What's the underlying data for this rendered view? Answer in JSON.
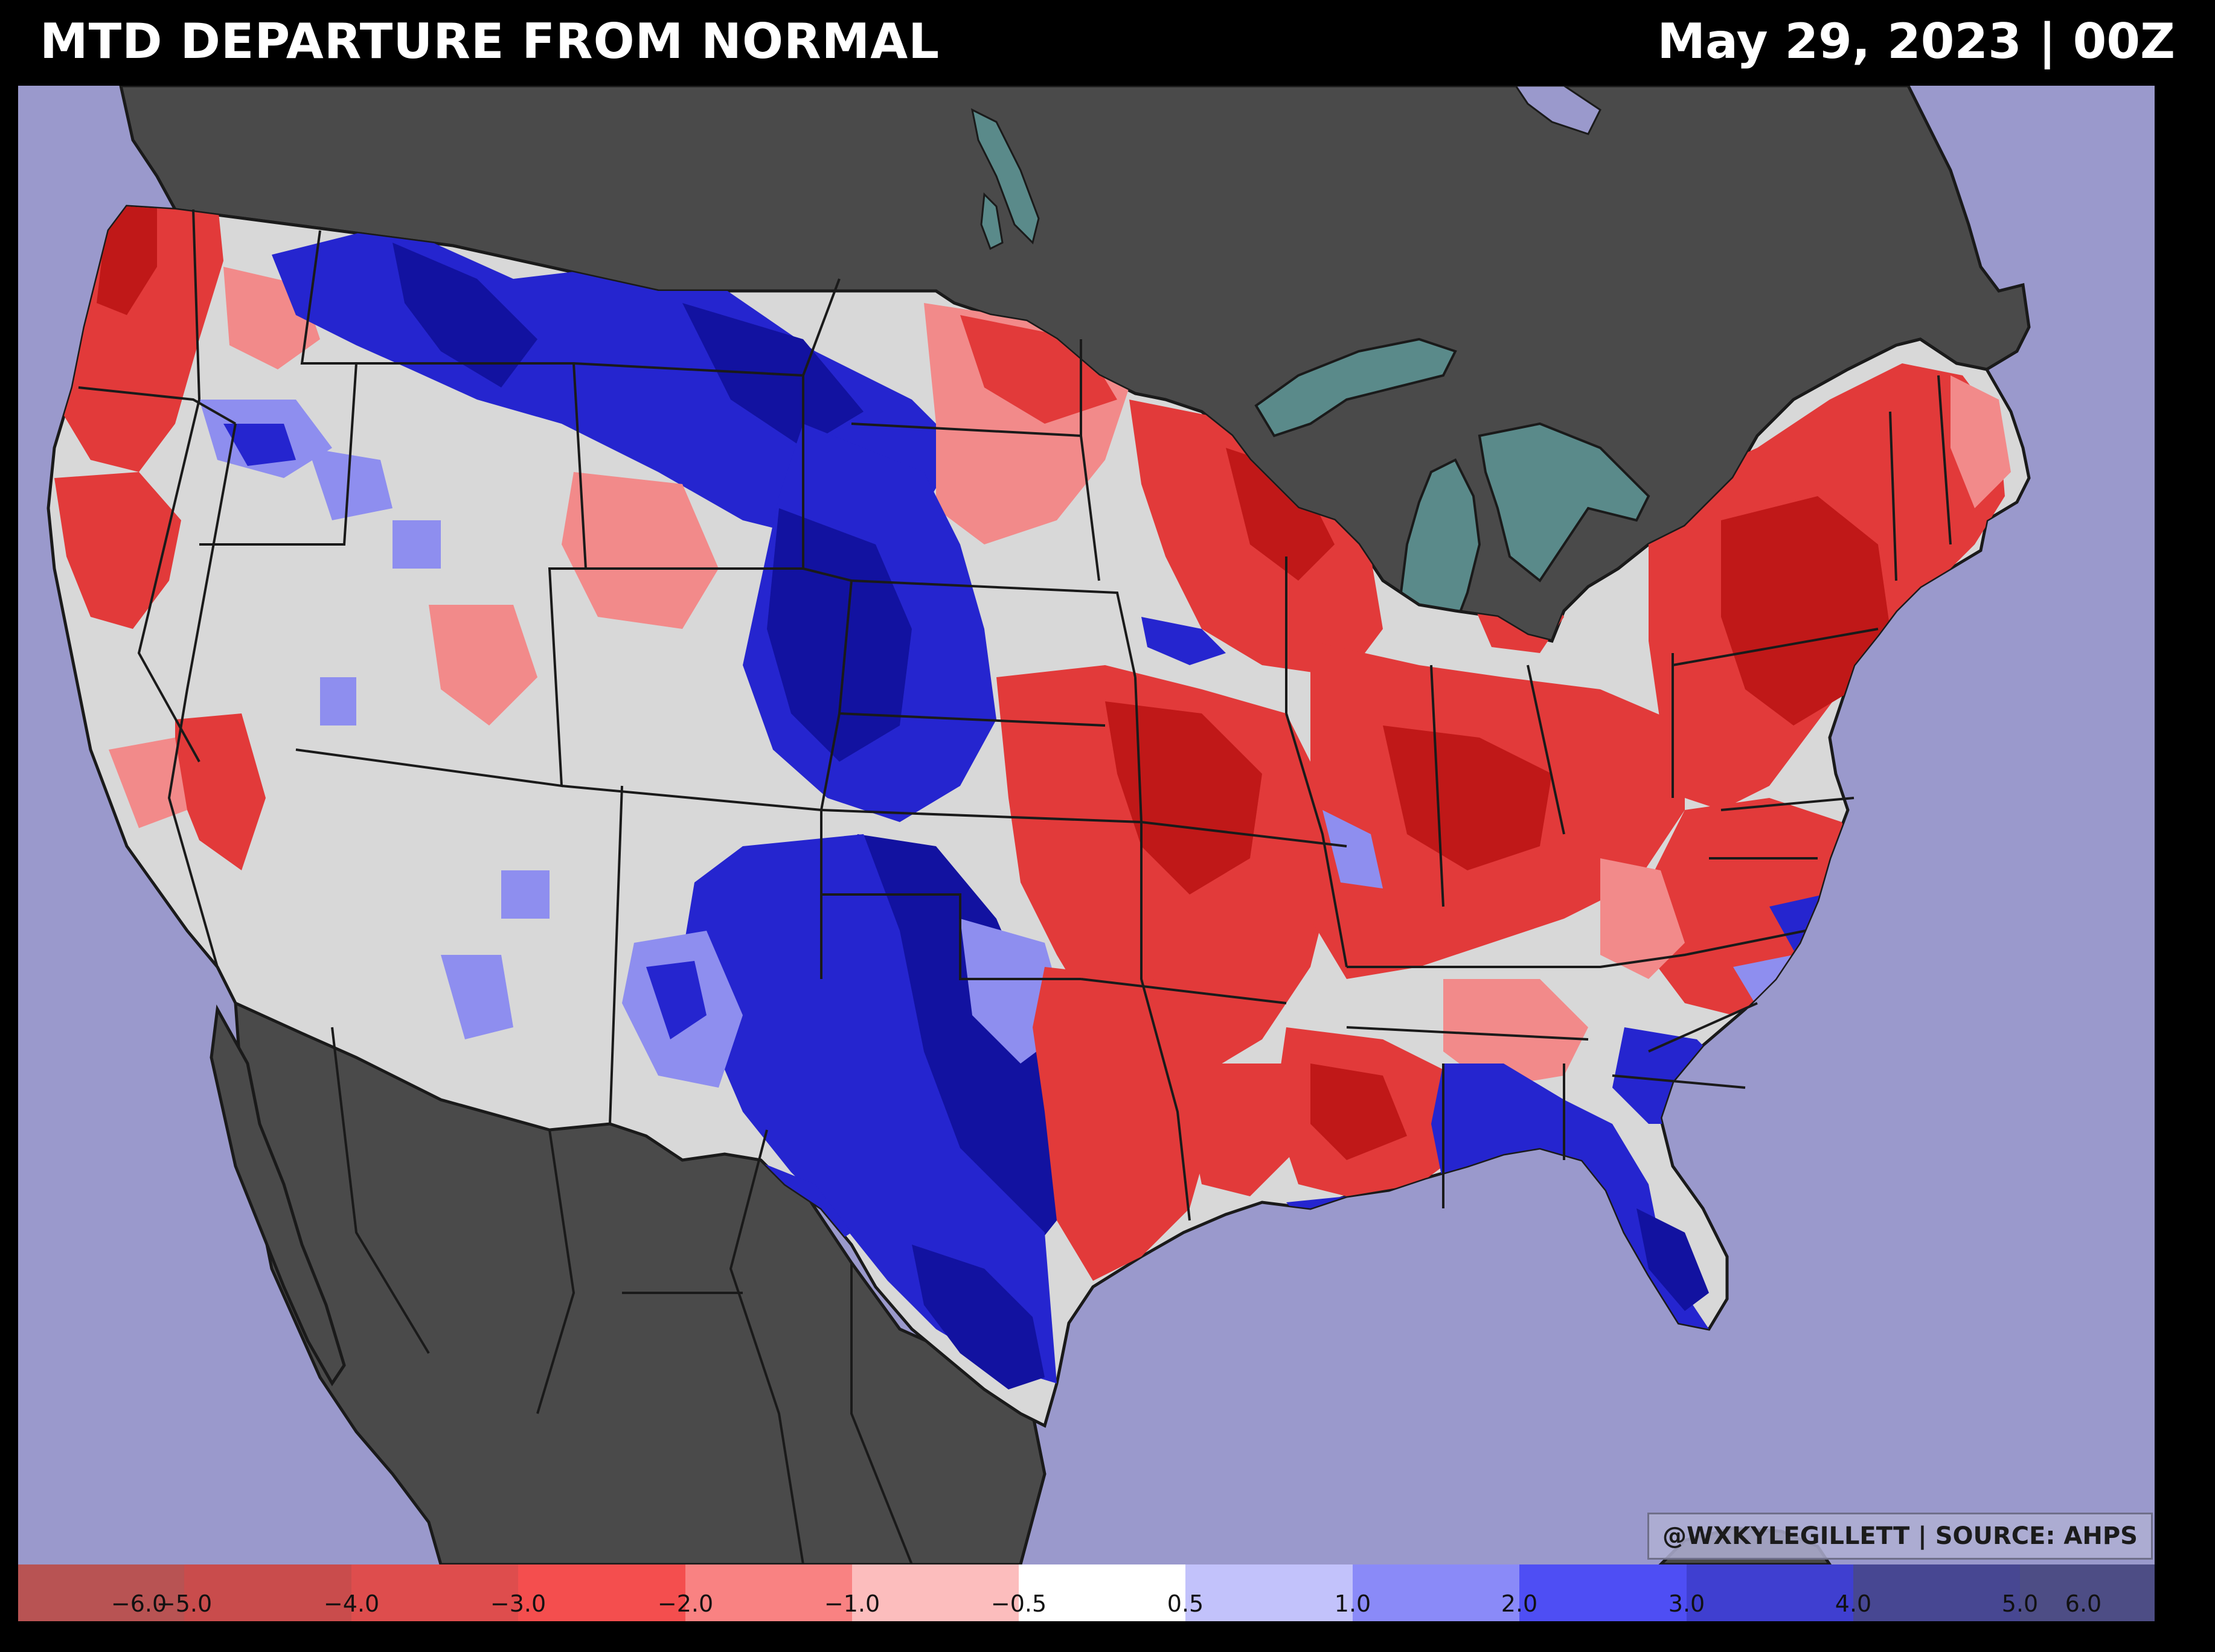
{
  "header": {
    "title": "MTD DEPARTURE FROM NORMAL",
    "valid_time": "May 29, 2023 | 00Z"
  },
  "credit": "@WXKYLEGILLETT | SOURCE: AHPS",
  "colors": {
    "ocean": "#9a99cc",
    "land_outside": "#4a4a4a",
    "lakes": "#5a8a8a",
    "neutral": "#d8d8d8",
    "dry_light": "#f28a8a",
    "dry": "#e23a3a",
    "dry_strong": "#c01818",
    "wet_light": "#8e8eef",
    "wet": "#2525cf",
    "wet_strong": "#1212a0",
    "borders": "#1a1a1a"
  },
  "colorbar": {
    "bins": [
      {
        "color": "#b85353"
      },
      {
        "color": "#c94c4c"
      },
      {
        "color": "#de4d4d"
      },
      {
        "color": "#f44e4e"
      },
      {
        "color": "#f98282"
      },
      {
        "color": "#fcbdbd"
      },
      {
        "color": "#ffffff"
      },
      {
        "color": "#c2c2fb"
      },
      {
        "color": "#8a8af8"
      },
      {
        "color": "#4e4ef4"
      },
      {
        "color": "#3f3fd0"
      },
      {
        "color": "#474792"
      },
      {
        "color": "#4d4d85"
      }
    ],
    "ticks": [
      "−6.0",
      "−5.0",
      "−4.0",
      "−3.0",
      "−2.0",
      "−1.0",
      "−0.5",
      "0.5",
      "1.0",
      "2.0",
      "3.0",
      "4.0",
      "5.0",
      "6.0"
    ]
  }
}
